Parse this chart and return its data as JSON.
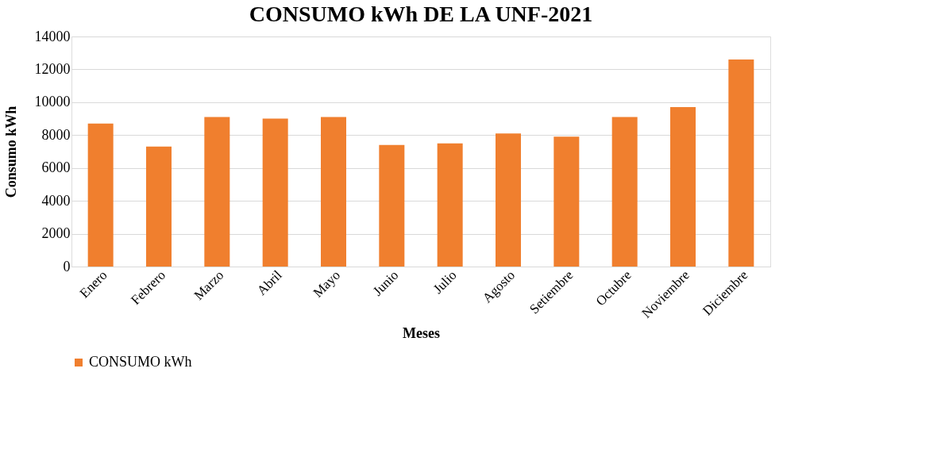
{
  "chart_data": {
    "type": "bar",
    "title": "CONSUMO kWh DE LA UNF-2021",
    "xlabel": "Meses",
    "ylabel": "Consumo kWh",
    "categories": [
      "Enero",
      "Febrero",
      "Marzo",
      "Abril",
      "Mayo",
      "Junio",
      "Julio",
      "Agosto",
      "Setiembre",
      "Octubre",
      "Noviembre",
      "Diciembre"
    ],
    "series": [
      {
        "name": "CONSUMO kWh",
        "color": "#f07f2e",
        "values": [
          8700,
          7300,
          9100,
          9000,
          9100,
          7400,
          7500,
          8100,
          7900,
          9100,
          9700,
          12600
        ]
      }
    ],
    "ylim": [
      0,
      14000
    ],
    "yticks": [
      0,
      2000,
      4000,
      6000,
      8000,
      10000,
      12000,
      14000
    ],
    "grid": "y",
    "legend": "bottom"
  }
}
